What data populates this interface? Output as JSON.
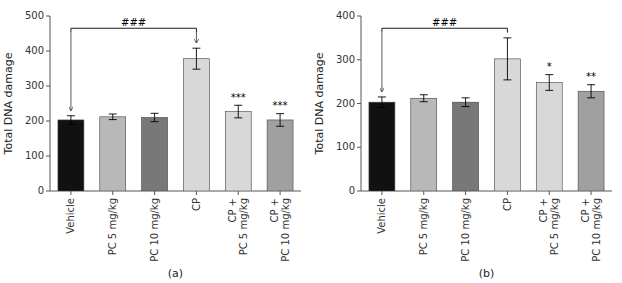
{
  "chart_data": [
    {
      "type": "bar",
      "ylabel": "Total DNA damage",
      "xlabel": "(a)",
      "ylim": [
        0,
        500
      ],
      "yticks": [
        0,
        100,
        200,
        300,
        400,
        500
      ],
      "categories": [
        "Vehicle",
        "PC 5 mg/kg",
        "PC 10 mg/kg",
        "CP",
        "CP +\nPC 5 mg/kg",
        "CP +\nPC 10 mg/kg"
      ],
      "values": [
        203,
        212,
        210,
        378,
        227,
        203
      ],
      "errors": [
        12,
        8,
        12,
        30,
        18,
        18
      ],
      "colors": [
        "#111111",
        "#b8b8b8",
        "#787878",
        "#d8d8d8",
        "#d8d8d8",
        "#a0a0a0"
      ],
      "annotations": [
        {
          "text": "***",
          "category": "CP +\nPC 5 mg/kg"
        },
        {
          "text": "***",
          "category": "CP +\nPC 10 mg/kg"
        },
        {
          "text": "###",
          "from": "Vehicle",
          "to": "CP"
        }
      ],
      "grid": false
    },
    {
      "type": "bar",
      "ylabel": "Total DNA damage",
      "xlabel": "(b)",
      "ylim": [
        0,
        400
      ],
      "yticks": [
        0,
        100,
        200,
        300,
        400
      ],
      "categories": [
        "Vehicle",
        "PC 5 mg/kg",
        "PC 10 mg/kg",
        "CP",
        "CP +\nPC 5 mg/kg",
        "CP +\nPC 10 mg/kg"
      ],
      "values": [
        203,
        212,
        203,
        302,
        248,
        228
      ],
      "errors": [
        12,
        8,
        10,
        48,
        18,
        15
      ],
      "colors": [
        "#111111",
        "#b8b8b8",
        "#787878",
        "#d8d8d8",
        "#d8d8d8",
        "#a0a0a0"
      ],
      "annotations": [
        {
          "text": "*",
          "category": "CP +\nPC 5 mg/kg"
        },
        {
          "text": "**",
          "category": "CP +\nPC 10 mg/kg"
        },
        {
          "text": "###",
          "from": "Vehicle",
          "to": "CP"
        }
      ],
      "grid": false
    }
  ]
}
